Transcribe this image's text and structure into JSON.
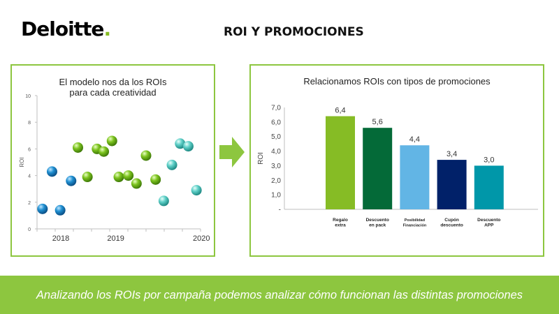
{
  "header": {
    "logo_text": "Deloitte",
    "logo_dot": ".",
    "title": "ROI Y PROMOCIONES"
  },
  "left_panel": {
    "title_line1": "El modelo nos da los ROIs",
    "title_line2": "para cada creatividad"
  },
  "right_panel": {
    "title": "Relacionamos ROIs con tipos de promociones"
  },
  "footer": {
    "text": "Analizando los ROIs por campaña podemos analizar cómo funcionan las distintas promociones"
  },
  "colors": {
    "brand_green": "#8dc63f",
    "blue_ball": "#1f8fd1",
    "green_ball": "#7dc41f",
    "teal_ball": "#5fd0c8"
  },
  "chart_data": [
    {
      "type": "scatter",
      "title": "El modelo nos da los ROIs para cada creatividad",
      "ylabel": "ROI",
      "ylim": [
        0,
        10
      ],
      "yticks": [
        "0",
        "2",
        "4",
        "6",
        "8",
        "10"
      ],
      "xcategories": [
        "2018",
        "2019",
        "2020"
      ],
      "series": [
        {
          "group": "2018",
          "color": "#1f8fd1",
          "points": [
            {
              "x": 0.2,
              "y": 1.5
            },
            {
              "x": 0.55,
              "y": 4.3
            },
            {
              "x": 0.85,
              "y": 1.4
            },
            {
              "x": 1.25,
              "y": 3.6
            }
          ]
        },
        {
          "group": "2019",
          "color": "#7dc41f",
          "points": [
            {
              "x": 1.5,
              "y": 6.1
            },
            {
              "x": 1.85,
              "y": 3.9
            },
            {
              "x": 2.2,
              "y": 6.0
            },
            {
              "x": 2.45,
              "y": 5.8
            },
            {
              "x": 2.75,
              "y": 6.6
            },
            {
              "x": 3.0,
              "y": 3.9
            },
            {
              "x": 3.35,
              "y": 4.0
            },
            {
              "x": 3.65,
              "y": 3.4
            },
            {
              "x": 4.0,
              "y": 5.5
            },
            {
              "x": 4.35,
              "y": 3.7
            }
          ]
        },
        {
          "group": "2020",
          "color": "#5fd0c8",
          "points": [
            {
              "x": 4.65,
              "y": 2.1
            },
            {
              "x": 4.95,
              "y": 4.8
            },
            {
              "x": 5.25,
              "y": 6.4
            },
            {
              "x": 5.55,
              "y": 6.2
            },
            {
              "x": 5.85,
              "y": 2.9
            }
          ]
        }
      ]
    },
    {
      "type": "bar",
      "title": "Relacionamos ROIs con tipos de promociones",
      "ylabel": "ROI",
      "ylim": [
        0,
        7
      ],
      "yticks": [
        "-",
        "1,0",
        "2,0",
        "3,0",
        "4,0",
        "5,0",
        "6,0",
        "7,0"
      ],
      "categories": [
        [
          "Regalo",
          "extra"
        ],
        [
          "Descuento",
          "en pack"
        ],
        [
          "Posibilidad",
          "Financiación"
        ],
        [
          "Cupón",
          "descuento"
        ],
        [
          "Descuento",
          "APP"
        ]
      ],
      "values": [
        6.4,
        5.6,
        4.4,
        3.4,
        3.0
      ],
      "value_labels": [
        "6,4",
        "5,6",
        "4,4",
        "3,4",
        "3,0"
      ],
      "colors": [
        "#86bc25",
        "#046a38",
        "#62b5e5",
        "#012169",
        "#0097a9"
      ]
    }
  ]
}
